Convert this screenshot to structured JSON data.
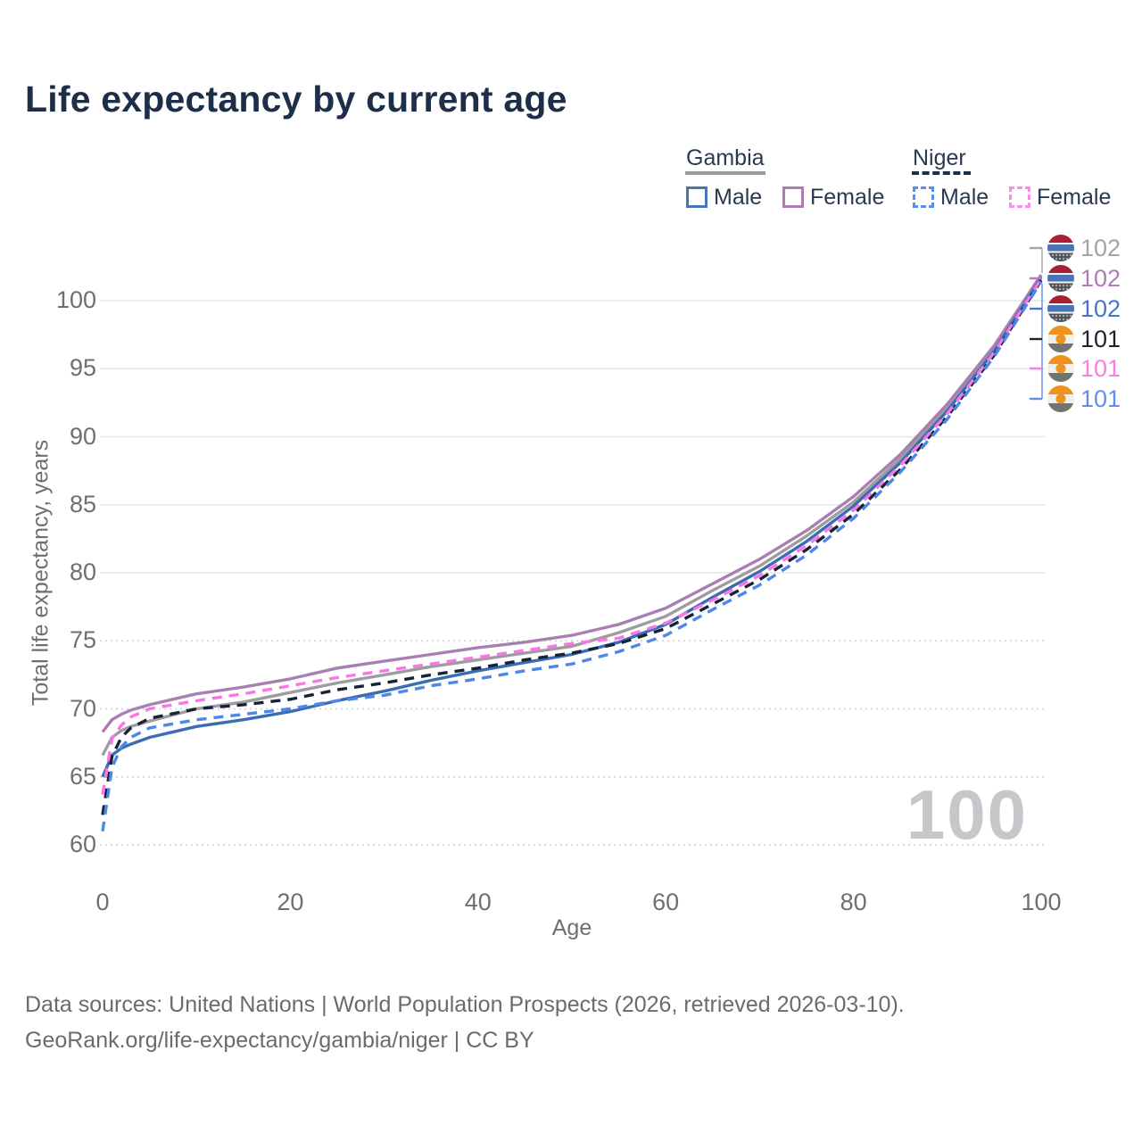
{
  "title": "Life expectancy by current age",
  "legend": {
    "groups": [
      {
        "name": "Gambia",
        "line_style": "solid",
        "entries": [
          {
            "label": "Male"
          },
          {
            "label": "Female"
          }
        ]
      },
      {
        "name": "Niger",
        "line_style": "dashed",
        "entries": [
          {
            "label": "Male"
          },
          {
            "label": "Female"
          }
        ]
      }
    ]
  },
  "watermark": "100",
  "end_labels": [
    {
      "value": "102",
      "country": "gambia",
      "series": "Gambia",
      "color": "#a3a3a9"
    },
    {
      "value": "102",
      "country": "gambia",
      "series": "Gambia Female",
      "color": "#b07ab8"
    },
    {
      "value": "102",
      "country": "gambia",
      "series": "Gambia Male",
      "color": "#4a74c8"
    },
    {
      "value": "101",
      "country": "niger",
      "series": "Niger",
      "color": "#1b2330"
    },
    {
      "value": "101",
      "country": "niger",
      "series": "Niger Female",
      "color": "#fb7ce8"
    },
    {
      "value": "101",
      "country": "niger",
      "series": "Niger Male",
      "color": "#5f8df2"
    }
  ],
  "footer": {
    "line1": "Data sources: United Nations | World Population Prospects (2026, retrieved 2026-03-10).",
    "line2": "GeoRank.org/life-expectancy/gambia/niger | CC BY"
  },
  "chart_data": {
    "type": "line",
    "title": "Life expectancy by current age",
    "xlabel": "Age",
    "ylabel": "Total life expectancy, years",
    "xlim": [
      0,
      100
    ],
    "ylim": [
      60,
      102
    ],
    "x_ticks": [
      0,
      20,
      40,
      60,
      80,
      100
    ],
    "y_ticks": [
      60,
      65,
      70,
      75,
      80,
      85,
      90,
      95,
      100
    ],
    "grid": "horizontal",
    "legend_position": "top-right",
    "x": [
      0,
      1,
      2,
      3,
      5,
      10,
      15,
      20,
      25,
      30,
      35,
      40,
      45,
      50,
      55,
      60,
      65,
      70,
      75,
      80,
      85,
      90,
      95,
      100
    ],
    "series": [
      {
        "name": "Gambia",
        "color": "#9d9da1",
        "dash": false,
        "values": [
          66.6,
          67.9,
          68.4,
          68.7,
          69.1,
          70.0,
          70.5,
          71.2,
          71.9,
          72.5,
          73.1,
          73.6,
          74.1,
          74.6,
          75.6,
          76.8,
          78.7,
          80.5,
          82.7,
          85.2,
          88.4,
          92.1,
          96.5,
          101.8
        ]
      },
      {
        "name": "Gambia Female",
        "color": "#a97fb2",
        "dash": false,
        "values": [
          68.3,
          69.2,
          69.6,
          69.9,
          70.3,
          71.1,
          71.6,
          72.2,
          73.0,
          73.5,
          74.0,
          74.5,
          74.9,
          75.4,
          76.2,
          77.4,
          79.2,
          81.0,
          83.1,
          85.6,
          88.7,
          92.4,
          96.7,
          101.9
        ]
      },
      {
        "name": "Gambia Male",
        "color": "#3b6cb3",
        "dash": false,
        "values": [
          65.0,
          66.6,
          67.1,
          67.4,
          67.9,
          68.7,
          69.2,
          69.8,
          70.6,
          71.3,
          72.1,
          72.8,
          73.4,
          74.0,
          74.9,
          76.2,
          78.2,
          80.1,
          82.3,
          84.9,
          88.1,
          91.9,
          96.3,
          101.7
        ]
      },
      {
        "name": "Niger",
        "color": "#152238",
        "dash": true,
        "values": [
          62.2,
          66.5,
          67.9,
          68.6,
          69.3,
          70.0,
          70.3,
          70.7,
          71.4,
          71.9,
          72.5,
          73.0,
          73.6,
          74.1,
          74.8,
          75.9,
          77.7,
          79.5,
          81.7,
          84.3,
          87.6,
          91.5,
          96.0,
          101.5
        ]
      },
      {
        "name": "Niger Female",
        "color": "#fb76e4",
        "dash": true,
        "values": [
          63.7,
          67.8,
          68.8,
          69.4,
          70.0,
          70.6,
          71.1,
          71.7,
          72.3,
          72.8,
          73.3,
          73.8,
          74.3,
          74.8,
          75.2,
          76.3,
          78.0,
          79.8,
          82.0,
          84.6,
          87.9,
          91.7,
          96.2,
          101.6
        ]
      },
      {
        "name": "Niger Male",
        "color": "#4e86ea",
        "dash": true,
        "values": [
          61.0,
          65.7,
          67.2,
          67.9,
          68.6,
          69.2,
          69.6,
          70.0,
          70.6,
          71.0,
          71.7,
          72.2,
          72.8,
          73.3,
          74.2,
          75.4,
          77.3,
          79.1,
          81.3,
          84.0,
          87.4,
          91.3,
          95.9,
          101.4
        ]
      }
    ]
  }
}
